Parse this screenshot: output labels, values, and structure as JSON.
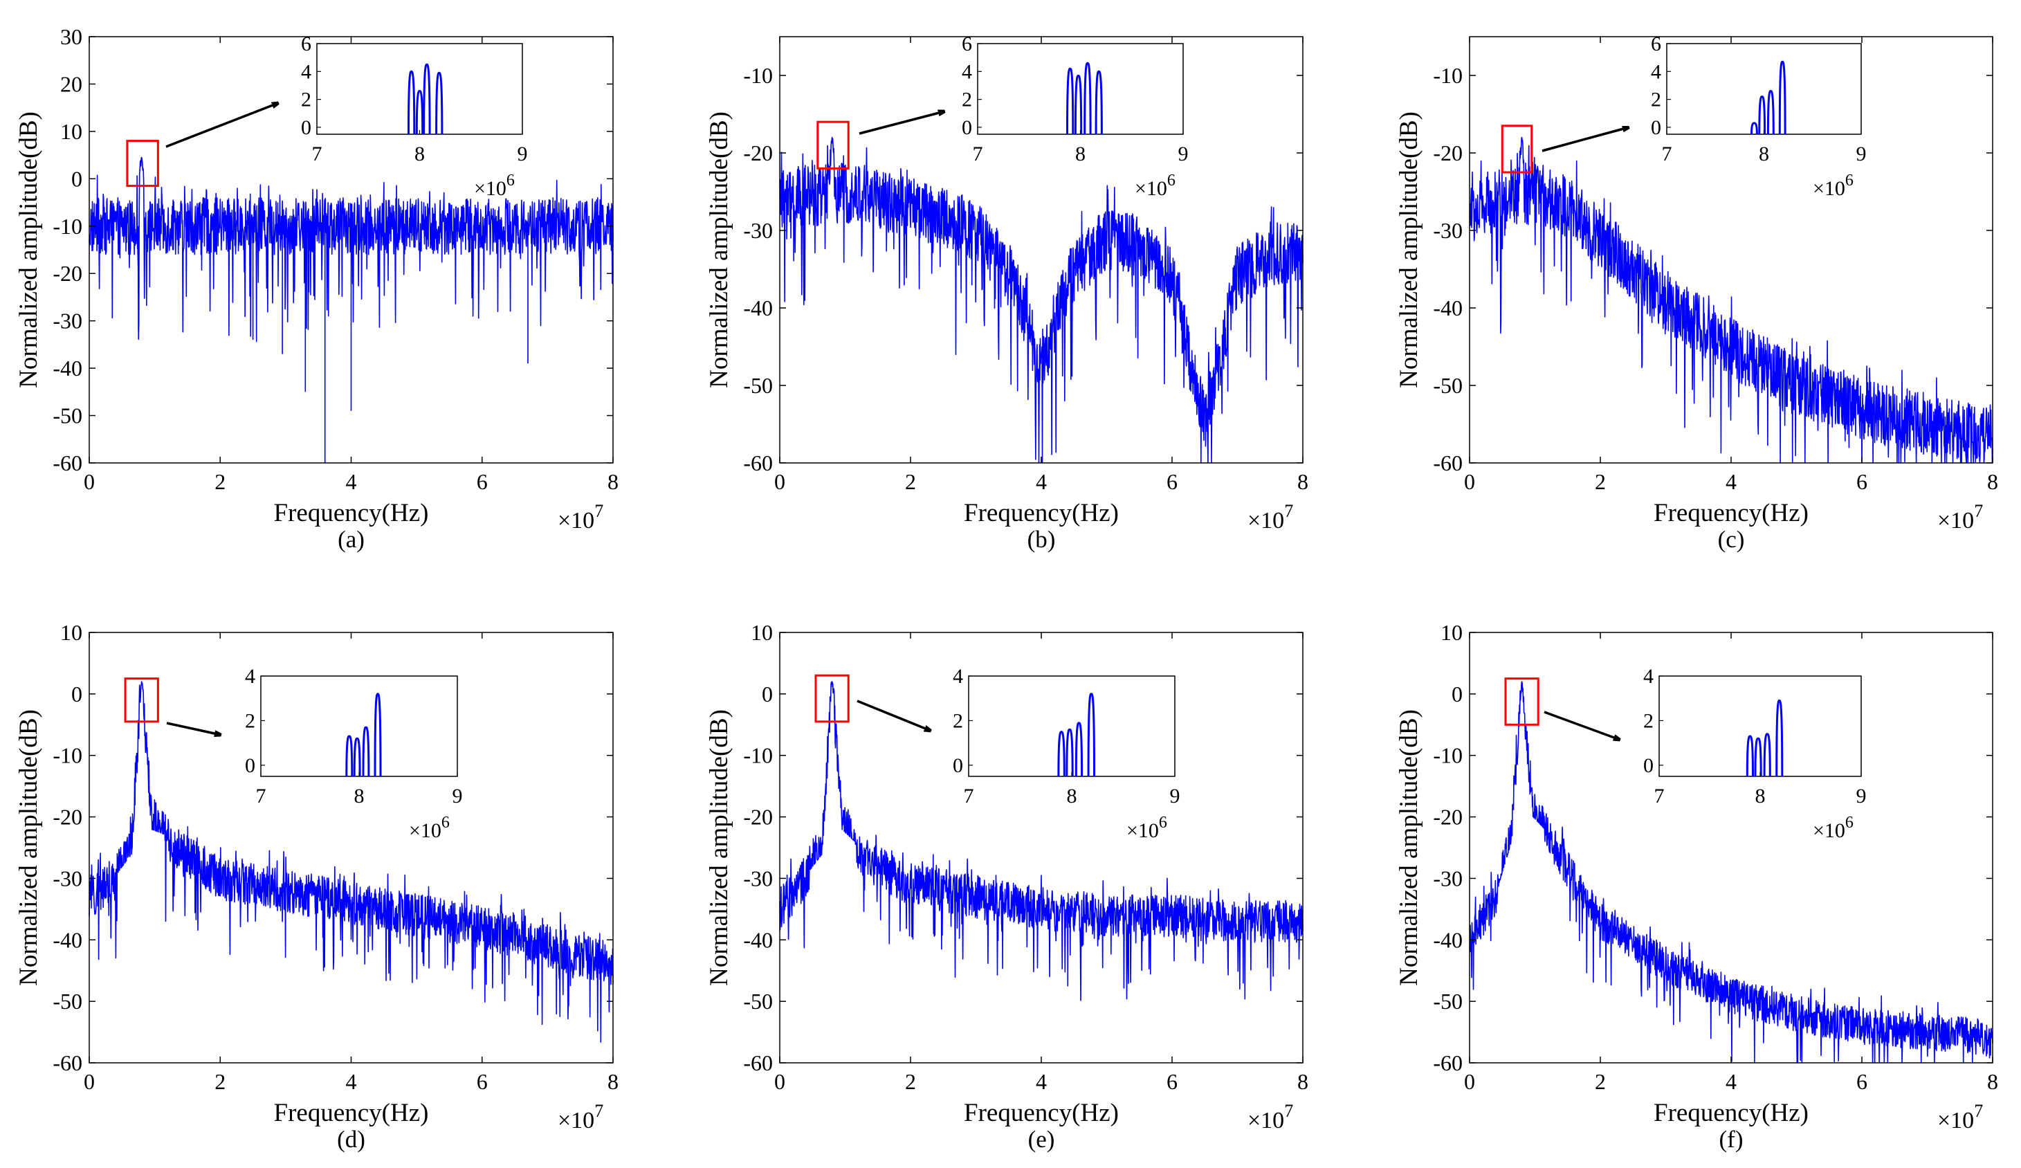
{
  "figure": {
    "panel_labels": [
      "(a)",
      "(b)",
      "(c)",
      "(d)",
      "(e)",
      "(f)"
    ]
  },
  "colors": {
    "series": "#0000ff",
    "highlight_box": "#ff0000",
    "axes": "#000000",
    "background": "#ffffff"
  },
  "chart_data": [
    {
      "type": "line",
      "label": "(a)",
      "xlabel": "Frequency(Hz)",
      "ylabel": "Normalized amplitude(dB)",
      "x_exponent": "×10",
      "x_exponent_power": "7",
      "xlim": [
        0,
        8
      ],
      "ylim": [
        -60,
        30
      ],
      "xticks": [
        "0",
        "2",
        "4",
        "6",
        "8"
      ],
      "yticks": [
        "-60",
        "-50",
        "-40",
        "-30",
        "-20",
        "-10",
        "0",
        "10",
        "20",
        "30"
      ],
      "profile": {
        "kind": "flat",
        "baseline_db": -10,
        "noise_db": 6,
        "dips": [
          [
            3.6,
            -60
          ],
          [
            3.3,
            -45
          ],
          [
            4.0,
            -49
          ],
          [
            2.95,
            -37
          ],
          [
            6.7,
            -39
          ],
          [
            2.5,
            -34
          ],
          [
            0.75,
            -32
          ]
        ]
      },
      "peak": {
        "x": 0.8,
        "y": 4.5
      },
      "highlight_box": {
        "x": [
          0.58,
          1.05
        ],
        "y": [
          -1.5,
          8
        ]
      },
      "inset": {
        "xlim": [
          7,
          9
        ],
        "ylim": [
          -0.5,
          6
        ],
        "xticks": [
          "7",
          "8",
          "9"
        ],
        "yticks": [
          "0",
          "2",
          "4",
          "6"
        ],
        "x_exponent": "×10",
        "x_exponent_power": "6",
        "peaks": [
          {
            "x": 7.92,
            "y": 4.0
          },
          {
            "x": 8.0,
            "y": 2.6
          },
          {
            "x": 8.07,
            "y": 4.5
          },
          {
            "x": 8.19,
            "y": 3.9
          }
        ],
        "floor_y": -0.5
      }
    },
    {
      "type": "line",
      "label": "(b)",
      "xlabel": "Frequency(Hz)",
      "ylabel": "Normalized amplitude(dB)",
      "x_exponent": "×10",
      "x_exponent_power": "7",
      "xlim": [
        0,
        8
      ],
      "ylim": [
        -60,
        -5
      ],
      "xticks": [
        "0",
        "2",
        "4",
        "6",
        "8"
      ],
      "yticks": [
        "-60",
        "-50",
        "-40",
        "-30",
        "-20",
        "-10"
      ],
      "profile": {
        "kind": "notch",
        "points": [
          [
            0,
            -26
          ],
          [
            1.0,
            -25
          ],
          [
            2.0,
            -27
          ],
          [
            3.0,
            -30
          ],
          [
            3.6,
            -37
          ],
          [
            4.0,
            -48
          ],
          [
            4.4,
            -36
          ],
          [
            5.0,
            -31
          ],
          [
            5.5,
            -32
          ],
          [
            6.0,
            -36
          ],
          [
            6.5,
            -55
          ],
          [
            7.0,
            -36
          ],
          [
            7.5,
            -33
          ],
          [
            8.0,
            -33
          ]
        ],
        "noise_db": 4
      },
      "peak": {
        "x": 0.8,
        "y": -18
      },
      "highlight_box": {
        "x": [
          0.58,
          1.05
        ],
        "y": [
          -22,
          -16
        ]
      },
      "inset": {
        "xlim": [
          7,
          9
        ],
        "ylim": [
          -0.5,
          6
        ],
        "xticks": [
          "7",
          "8",
          "9"
        ],
        "yticks": [
          "0",
          "2",
          "4",
          "6"
        ],
        "x_exponent": "×10",
        "x_exponent_power": "6",
        "peaks": [
          {
            "x": 7.9,
            "y": 4.2
          },
          {
            "x": 7.98,
            "y": 3.7
          },
          {
            "x": 8.07,
            "y": 4.6
          },
          {
            "x": 8.18,
            "y": 4.0
          }
        ],
        "floor_y": -0.5
      }
    },
    {
      "type": "line",
      "label": "(c)",
      "xlabel": "Frequency(Hz)",
      "ylabel": "Normalized amplitude(dB)",
      "x_exponent": "×10",
      "x_exponent_power": "7",
      "xlim": [
        0,
        8
      ],
      "ylim": [
        -60,
        -5
      ],
      "xticks": [
        "0",
        "2",
        "4",
        "6",
        "8"
      ],
      "yticks": [
        "-60",
        "-50",
        "-40",
        "-30",
        "-20",
        "-10"
      ],
      "profile": {
        "kind": "decay",
        "points": [
          [
            0,
            -28
          ],
          [
            0.5,
            -26
          ],
          [
            1.0,
            -25
          ],
          [
            1.5,
            -27
          ],
          [
            2.0,
            -31
          ],
          [
            3.0,
            -39
          ],
          [
            4.0,
            -45
          ],
          [
            5.0,
            -50
          ],
          [
            6.0,
            -53
          ],
          [
            7.0,
            -55
          ],
          [
            8.0,
            -57
          ]
        ],
        "noise_db": 4
      },
      "peak": {
        "x": 0.8,
        "y": -18
      },
      "highlight_box": {
        "x": [
          0.5,
          0.95
        ],
        "y": [
          -22.5,
          -16.5
        ]
      },
      "inset": {
        "xlim": [
          7,
          9
        ],
        "ylim": [
          -0.5,
          6
        ],
        "xticks": [
          "7",
          "8",
          "9"
        ],
        "yticks": [
          "0",
          "2",
          "4",
          "6"
        ],
        "x_exponent": "×10",
        "x_exponent_power": "6",
        "peaks": [
          {
            "x": 7.9,
            "y": 0.3
          },
          {
            "x": 7.98,
            "y": 2.2
          },
          {
            "x": 8.07,
            "y": 2.6
          },
          {
            "x": 8.19,
            "y": 4.7
          }
        ],
        "floor_y": -0.5
      }
    },
    {
      "type": "line",
      "label": "(d)",
      "xlabel": "Frequency(Hz)",
      "ylabel": "Normalized amplitude(dB)",
      "x_exponent": "×10",
      "x_exponent_power": "7",
      "xlim": [
        0,
        8
      ],
      "ylim": [
        -60,
        10
      ],
      "xticks": [
        "0",
        "2",
        "4",
        "6",
        "8"
      ],
      "yticks": [
        "-60",
        "-50",
        "-40",
        "-30",
        "-20",
        "-10",
        "0",
        "10"
      ],
      "profile": {
        "kind": "spike",
        "points": [
          [
            0,
            -33
          ],
          [
            0.4,
            -30
          ],
          [
            0.65,
            -24
          ],
          [
            0.8,
            2
          ],
          [
            0.95,
            -20
          ],
          [
            1.3,
            -25
          ],
          [
            2.0,
            -30
          ],
          [
            3.0,
            -32
          ],
          [
            4.0,
            -34
          ],
          [
            5.0,
            -36
          ],
          [
            6.0,
            -38
          ],
          [
            7.0,
            -41
          ],
          [
            8.0,
            -44
          ]
        ],
        "noise_db": 3.5
      },
      "peak": {
        "x": 0.8,
        "y": 2
      },
      "highlight_box": {
        "x": [
          0.55,
          1.05
        ],
        "y": [
          -4.5,
          2.5
        ]
      },
      "inset": {
        "xlim": [
          7,
          9
        ],
        "ylim": [
          -0.5,
          4
        ],
        "xticks": [
          "7",
          "8",
          "9"
        ],
        "yticks": [
          "0",
          "2",
          "4"
        ],
        "x_exponent": "×10",
        "x_exponent_power": "6",
        "peaks": [
          {
            "x": 7.9,
            "y": 1.3
          },
          {
            "x": 7.98,
            "y": 1.2
          },
          {
            "x": 8.07,
            "y": 1.7
          },
          {
            "x": 8.19,
            "y": 3.2
          }
        ],
        "floor_y": -0.5
      }
    },
    {
      "type": "line",
      "label": "(e)",
      "xlabel": "Frequency(Hz)",
      "ylabel": "Normalized amplitude(dB)",
      "x_exponent": "×10",
      "x_exponent_power": "7",
      "xlim": [
        0,
        8
      ],
      "ylim": [
        -60,
        10
      ],
      "xticks": [
        "0",
        "2",
        "4",
        "6",
        "8"
      ],
      "yticks": [
        "-60",
        "-50",
        "-40",
        "-30",
        "-20",
        "-10",
        "0",
        "10"
      ],
      "profile": {
        "kind": "spike",
        "points": [
          [
            0,
            -35
          ],
          [
            0.4,
            -30
          ],
          [
            0.65,
            -24
          ],
          [
            0.8,
            2
          ],
          [
            0.95,
            -20
          ],
          [
            1.3,
            -27
          ],
          [
            2.0,
            -31
          ],
          [
            3.0,
            -33
          ],
          [
            4.0,
            -35
          ],
          [
            5.0,
            -36
          ],
          [
            6.0,
            -36
          ],
          [
            7.0,
            -37
          ],
          [
            8.0,
            -37
          ]
        ],
        "noise_db": 3.5
      },
      "peak": {
        "x": 0.8,
        "y": 2
      },
      "highlight_box": {
        "x": [
          0.55,
          1.05
        ],
        "y": [
          -4.5,
          3
        ]
      },
      "inset": {
        "xlim": [
          7,
          9
        ],
        "ylim": [
          -0.5,
          4
        ],
        "xticks": [
          "7",
          "8",
          "9"
        ],
        "yticks": [
          "0",
          "2",
          "4"
        ],
        "x_exponent": "×10",
        "x_exponent_power": "6",
        "peaks": [
          {
            "x": 7.9,
            "y": 1.5
          },
          {
            "x": 7.98,
            "y": 1.6
          },
          {
            "x": 8.07,
            "y": 1.9
          },
          {
            "x": 8.19,
            "y": 3.2
          }
        ],
        "floor_y": -0.5
      }
    },
    {
      "type": "line",
      "label": "(f)",
      "xlabel": "Frequency(Hz)",
      "ylabel": "Normalized amplitude(dB)",
      "x_exponent": "×10",
      "x_exponent_power": "7",
      "xlim": [
        0,
        8
      ],
      "ylim": [
        -60,
        10
      ],
      "xticks": [
        "0",
        "2",
        "4",
        "6",
        "8"
      ],
      "yticks": [
        "-60",
        "-50",
        "-40",
        "-30",
        "-20",
        "-10",
        "0",
        "10"
      ],
      "profile": {
        "kind": "spike",
        "points": [
          [
            0,
            -40
          ],
          [
            0.4,
            -33
          ],
          [
            0.65,
            -22
          ],
          [
            0.8,
            2
          ],
          [
            0.95,
            -18
          ],
          [
            1.3,
            -25
          ],
          [
            2.0,
            -37
          ],
          [
            3.0,
            -44
          ],
          [
            4.0,
            -49
          ],
          [
            5.0,
            -52
          ],
          [
            6.0,
            -54
          ],
          [
            7.0,
            -55
          ],
          [
            8.0,
            -56
          ]
        ],
        "noise_db": 3
      },
      "peak": {
        "x": 0.8,
        "y": 2
      },
      "highlight_box": {
        "x": [
          0.55,
          1.05
        ],
        "y": [
          -5,
          2.5
        ]
      },
      "inset": {
        "xlim": [
          7,
          9
        ],
        "ylim": [
          -0.5,
          4
        ],
        "xticks": [
          "7",
          "8",
          "9"
        ],
        "yticks": [
          "0",
          "2",
          "4"
        ],
        "x_exponent": "×10",
        "x_exponent_power": "6",
        "peaks": [
          {
            "x": 7.9,
            "y": 1.3
          },
          {
            "x": 7.98,
            "y": 1.2
          },
          {
            "x": 8.07,
            "y": 1.4
          },
          {
            "x": 8.19,
            "y": 2.9
          }
        ],
        "floor_y": -0.5
      }
    }
  ]
}
